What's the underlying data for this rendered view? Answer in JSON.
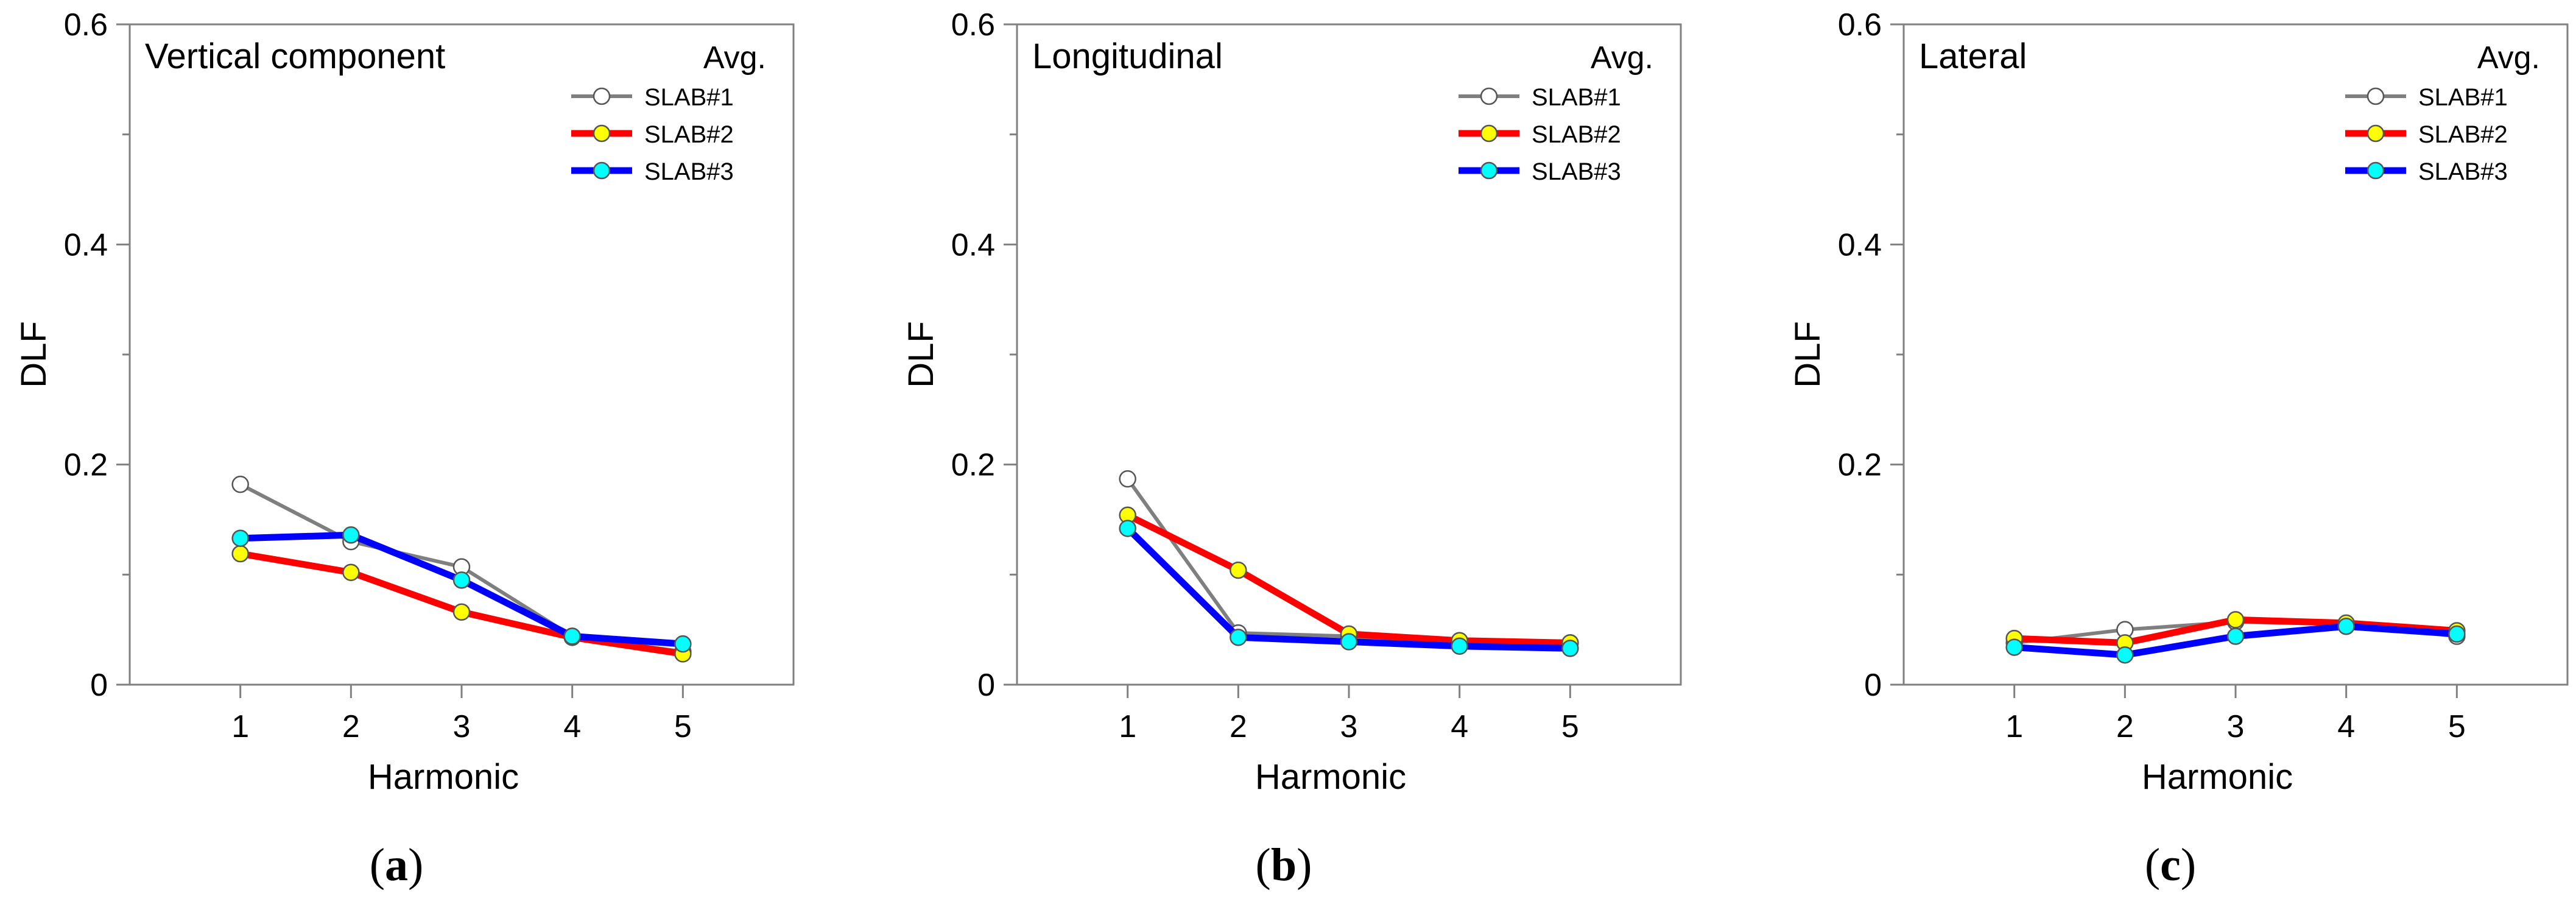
{
  "chart_data": [
    {
      "type": "line",
      "panel_label": "a",
      "title": "Vertical component",
      "xlabel": "Harmonic",
      "ylabel": "DLF",
      "x": [
        1,
        2,
        3,
        4,
        5
      ],
      "xlim": [
        0,
        6
      ],
      "ylim": [
        0,
        0.6
      ],
      "yticks": [
        0,
        0.2,
        0.4,
        0.6
      ],
      "ytick_labels": [
        "0",
        "0.2",
        "0.4",
        "0.6"
      ],
      "xtick_labels": [
        "1",
        "2",
        "3",
        "4",
        "5"
      ],
      "legend_title": "Avg.",
      "legend_position": "top-right",
      "grid": false,
      "series": [
        {
          "name": "SLAB#1",
          "values": [
            0.182,
            0.13,
            0.107,
            0.044,
            0.03
          ],
          "line_color": "#7f7f7f",
          "marker_color": "#ffffff"
        },
        {
          "name": "SLAB#2",
          "values": [
            0.119,
            0.102,
            0.066,
            0.043,
            0.028
          ],
          "line_color": "#ff0000",
          "marker_color": "#ffff00"
        },
        {
          "name": "SLAB#3",
          "values": [
            0.133,
            0.136,
            0.095,
            0.044,
            0.037
          ],
          "line_color": "#0000ff",
          "marker_color": "#00ffff"
        }
      ]
    },
    {
      "type": "line",
      "panel_label": "b",
      "title": "Longitudinal",
      "xlabel": "Harmonic",
      "ylabel": "DLF",
      "x": [
        1,
        2,
        3,
        4,
        5
      ],
      "xlim": [
        0,
        6
      ],
      "ylim": [
        0,
        0.6
      ],
      "yticks": [
        0,
        0.2,
        0.4,
        0.6
      ],
      "ytick_labels": [
        "0",
        "0.2",
        "0.4",
        "0.6"
      ],
      "xtick_labels": [
        "1",
        "2",
        "3",
        "4",
        "5"
      ],
      "legend_title": "Avg.",
      "legend_position": "top-right",
      "grid": false,
      "series": [
        {
          "name": "SLAB#1",
          "values": [
            0.187,
            0.047,
            0.044,
            0.036,
            0.038
          ],
          "line_color": "#7f7f7f",
          "marker_color": "#ffffff"
        },
        {
          "name": "SLAB#2",
          "values": [
            0.154,
            0.104,
            0.046,
            0.04,
            0.038
          ],
          "line_color": "#ff0000",
          "marker_color": "#ffff00"
        },
        {
          "name": "SLAB#3",
          "values": [
            0.142,
            0.043,
            0.039,
            0.035,
            0.033
          ],
          "line_color": "#0000ff",
          "marker_color": "#00ffff"
        }
      ]
    },
    {
      "type": "line",
      "panel_label": "c",
      "title": "Lateral",
      "xlabel": "Harmonic",
      "ylabel": "DLF",
      "x": [
        1,
        2,
        3,
        4,
        5
      ],
      "xlim": [
        0,
        6
      ],
      "ylim": [
        0,
        0.6
      ],
      "yticks": [
        0,
        0.2,
        0.4,
        0.6
      ],
      "ytick_labels": [
        "0",
        "0.2",
        "0.4",
        "0.6"
      ],
      "xtick_labels": [
        "1",
        "2",
        "3",
        "4",
        "5"
      ],
      "legend_title": "Avg.",
      "legend_position": "top-right",
      "grid": false,
      "series": [
        {
          "name": "SLAB#1",
          "values": [
            0.038,
            0.05,
            0.057,
            0.055,
            0.044
          ],
          "line_color": "#7f7f7f",
          "marker_color": "#ffffff"
        },
        {
          "name": "SLAB#2",
          "values": [
            0.042,
            0.038,
            0.059,
            0.056,
            0.049
          ],
          "line_color": "#ff0000",
          "marker_color": "#ffff00"
        },
        {
          "name": "SLAB#3",
          "values": [
            0.034,
            0.027,
            0.044,
            0.053,
            0.046
          ],
          "line_color": "#0000ff",
          "marker_color": "#00ffff"
        }
      ]
    }
  ]
}
